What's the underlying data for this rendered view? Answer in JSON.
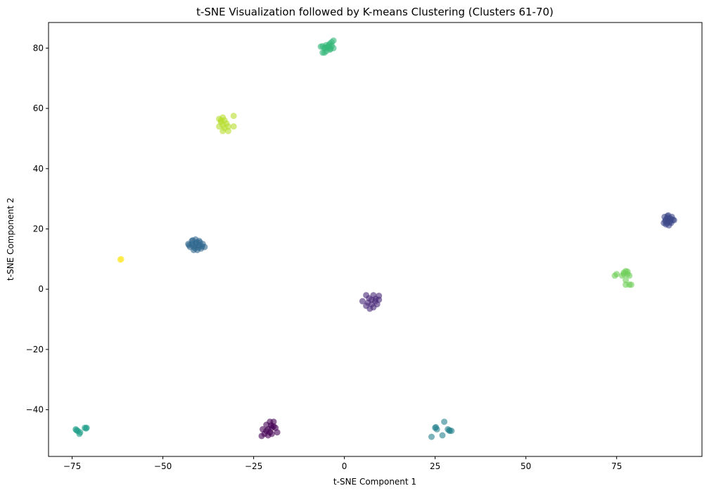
{
  "chart_data": {
    "type": "scatter",
    "title": "t-SNE Visualization followed by K-means Clustering (Clusters 61-70)",
    "xlabel": "t-SNE Component 1",
    "ylabel": "t-SNE Component 2",
    "xlim": [
      -81.5,
      98.5
    ],
    "ylim": [
      -55.5,
      88.5
    ],
    "xticks": [
      -75,
      -50,
      -25,
      0,
      25,
      50,
      75
    ],
    "xtick_labels": [
      "−75",
      "−50",
      "−25",
      "0",
      "25",
      "50",
      "75"
    ],
    "yticks": [
      -40,
      -20,
      0,
      20,
      40,
      60,
      80
    ],
    "ytick_labels": [
      "−40",
      "−20",
      "0",
      "20",
      "40",
      "60",
      "80"
    ],
    "grid": false,
    "legend": "none",
    "marker_alpha": 0.6,
    "series": [
      {
        "color": "#440154",
        "points": [
          [
            -22.5,
            -46.5
          ],
          [
            -21.5,
            -45
          ],
          [
            -20.5,
            -44
          ],
          [
            -19.5,
            -44
          ],
          [
            -21,
            -46.5
          ],
          [
            -20,
            -46
          ],
          [
            -19,
            -46
          ],
          [
            -22,
            -48
          ],
          [
            -21,
            -48.5
          ],
          [
            -20,
            -48
          ],
          [
            -18.5,
            -47.5
          ],
          [
            -21.5,
            -47
          ],
          [
            -20.5,
            -47.5
          ],
          [
            -19.5,
            -45.5
          ],
          [
            -22.8,
            -48.7
          ],
          [
            -20.2,
            -45.2
          ]
        ]
      },
      {
        "color": "#482878",
        "points": [
          [
            6,
            -2
          ],
          [
            8,
            -2
          ],
          [
            9.5,
            -2.2
          ],
          [
            5,
            -4
          ],
          [
            6.5,
            -4.5
          ],
          [
            7.5,
            -3.5
          ],
          [
            8.5,
            -4
          ],
          [
            9.5,
            -3.5
          ],
          [
            6,
            -5.5
          ],
          [
            7.5,
            -5
          ],
          [
            9,
            -5
          ],
          [
            7,
            -6.5
          ],
          [
            8,
            -6
          ],
          [
            6.8,
            -3
          ],
          [
            8.6,
            -3.2
          ]
        ]
      },
      {
        "color": "#3e4989",
        "points": [
          [
            88,
            22
          ],
          [
            88.5,
            23
          ],
          [
            89,
            22.5
          ],
          [
            89.5,
            23.5
          ],
          [
            90,
            22
          ],
          [
            90.5,
            23
          ],
          [
            88.2,
            24
          ],
          [
            89.2,
            24.5
          ],
          [
            90.2,
            24
          ],
          [
            88.6,
            21.5
          ],
          [
            89.4,
            21.2
          ],
          [
            89.8,
            22.8
          ],
          [
            88.9,
            23.6
          ],
          [
            89.6,
            22.2
          ],
          [
            88.4,
            22.6
          ],
          [
            90.8,
            22.9
          ],
          [
            89,
            24.2
          ],
          [
            89.9,
            23.4
          ],
          [
            88.8,
            21.9
          ]
        ]
      },
      {
        "color": "#31688e",
        "points": [
          [
            -43,
            15
          ],
          [
            -42,
            16
          ],
          [
            -41,
            16.5
          ],
          [
            -40,
            16
          ],
          [
            -39,
            15
          ],
          [
            -38.5,
            14
          ],
          [
            -39.5,
            13.5
          ],
          [
            -40.5,
            13
          ],
          [
            -41.5,
            13
          ],
          [
            -42.5,
            14
          ],
          [
            -41,
            14.5
          ],
          [
            -40,
            14.5
          ],
          [
            -42,
            15
          ],
          [
            -39.8,
            15.5
          ],
          [
            -41.8,
            16.2
          ],
          [
            -40.6,
            15.6
          ],
          [
            -41.2,
            13.6
          ],
          [
            -42.8,
            14.6
          ],
          [
            -39.2,
            14.2
          ],
          [
            -40.2,
            13.8
          ],
          [
            -41.6,
            14.2
          ],
          [
            -40.9,
            15.2
          ]
        ]
      },
      {
        "color": "#26828e",
        "points": [
          [
            24,
            -49
          ],
          [
            25,
            -46
          ],
          [
            25.5,
            -46.5
          ],
          [
            27,
            -48.5
          ],
          [
            27.5,
            -44
          ],
          [
            28.5,
            -46.5
          ],
          [
            29,
            -47
          ],
          [
            29.5,
            -47
          ],
          [
            25.2,
            -45.8
          ],
          [
            28.9,
            -46.8
          ]
        ]
      },
      {
        "color": "#1f9e89",
        "points": [
          [
            -74,
            -46.5
          ],
          [
            -73.5,
            -47
          ],
          [
            -73,
            -48
          ],
          [
            -72.8,
            -47.5
          ],
          [
            -71.5,
            -46
          ],
          [
            -71,
            -46
          ],
          [
            -73.8,
            -46.8
          ],
          [
            -71.2,
            -46.2
          ]
        ]
      },
      {
        "color": "#35b779",
        "points": [
          [
            -6.5,
            80.5
          ],
          [
            -5.5,
            80
          ],
          [
            -5,
            81
          ],
          [
            -4.5,
            80.5
          ],
          [
            -4,
            81.5
          ],
          [
            -3.5,
            82
          ],
          [
            -3,
            82.5
          ],
          [
            -3,
            80
          ],
          [
            -4,
            79.5
          ],
          [
            -5,
            79
          ],
          [
            -6,
            78.5
          ],
          [
            -5.5,
            78.5
          ],
          [
            -4.5,
            80
          ],
          [
            -3.5,
            80.8
          ],
          [
            -4.2,
            81
          ],
          [
            -5.2,
            80.2
          ],
          [
            -6,
            80.6
          ],
          [
            -3.8,
            79.8
          ]
        ]
      },
      {
        "color": "#6ece58",
        "points": [
          [
            74.5,
            4.5
          ],
          [
            75,
            5
          ],
          [
            76.5,
            4.5
          ],
          [
            77,
            5.5
          ],
          [
            77.5,
            6
          ],
          [
            78,
            5
          ],
          [
            78.5,
            4.5
          ],
          [
            77.5,
            3
          ],
          [
            77.5,
            1.5
          ],
          [
            78.5,
            1.5
          ],
          [
            79,
            1.5
          ],
          [
            77,
            5
          ],
          [
            78,
            5.8
          ]
        ]
      },
      {
        "color": "#b5de2b",
        "points": [
          [
            -34.5,
            56.5
          ],
          [
            -34,
            55.5
          ],
          [
            -33.5,
            57
          ],
          [
            -33,
            56
          ],
          [
            -32.5,
            55
          ],
          [
            -33.5,
            54.5
          ],
          [
            -34.5,
            54
          ],
          [
            -33,
            53.5
          ],
          [
            -32,
            54
          ],
          [
            -33.5,
            52.5
          ],
          [
            -32,
            52.5
          ],
          [
            -30.5,
            54
          ],
          [
            -30.5,
            57.5
          ],
          [
            -34,
            56
          ]
        ]
      },
      {
        "color": "#fde725",
        "points": [
          [
            -61.5,
            10
          ],
          [
            -61.7,
            9.8
          ]
        ]
      }
    ]
  }
}
